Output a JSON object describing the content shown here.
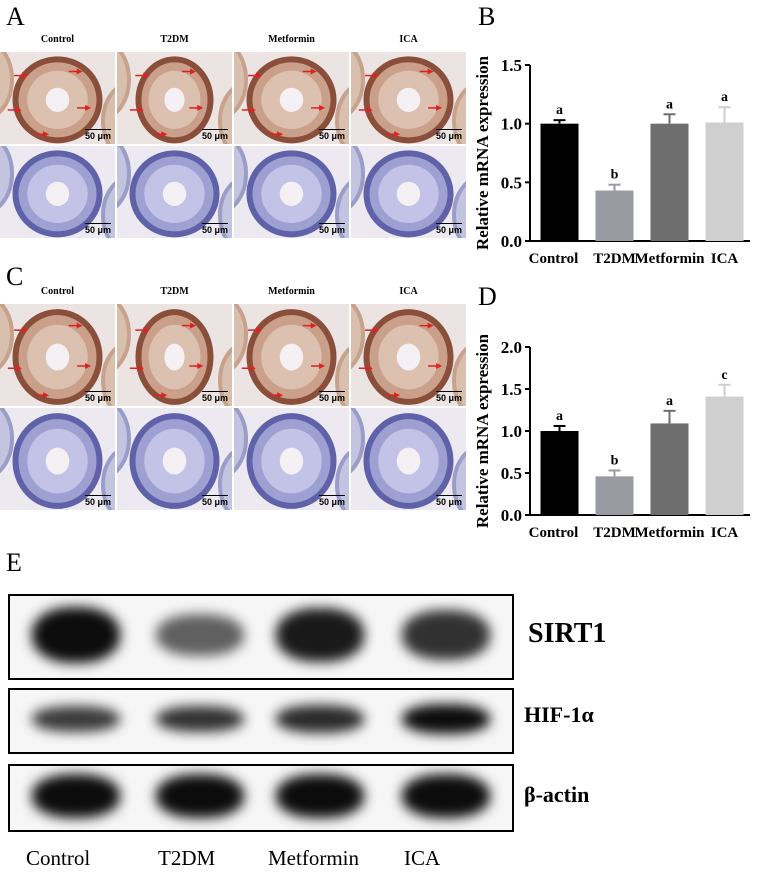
{
  "panels": {
    "A": "A",
    "B": "B",
    "C": "C",
    "D": "D",
    "E": "E"
  },
  "micro_headers": [
    "Control",
    "T2DM",
    "Metformin",
    "ICA"
  ],
  "scale_bar": "50 μm",
  "colors": {
    "stain_brown": "#b8866a",
    "stain_blue": "#7b7fbf",
    "tissue_bg": "#e9e3ea"
  },
  "chart_data": [
    {
      "type": "bar",
      "panel": "B",
      "categories": [
        "Control",
        "T2DM",
        "Metformin",
        "ICA"
      ],
      "values": [
        1.0,
        0.43,
        1.0,
        1.01
      ],
      "errors": [
        0.03,
        0.05,
        0.08,
        0.13
      ],
      "letters": [
        "a",
        "b",
        "a",
        "a"
      ],
      "colors": [
        "#000000",
        "#9a9aa2",
        "#6e6e6e",
        "#cfcfcf"
      ],
      "ylabel": "Relative mRNA expression",
      "ylim": [
        0,
        1.5
      ],
      "yticks": [
        "0.0",
        "0.5",
        "1.0",
        "1.5"
      ]
    },
    {
      "type": "bar",
      "panel": "D",
      "categories": [
        "Control",
        "T2DM",
        "Metformin",
        "ICA"
      ],
      "values": [
        1.0,
        0.46,
        1.09,
        1.41
      ],
      "errors": [
        0.06,
        0.07,
        0.15,
        0.14
      ],
      "letters": [
        "a",
        "b",
        "a",
        "c"
      ],
      "colors": [
        "#000000",
        "#9a9aa2",
        "#6e6e6e",
        "#cfcfcf"
      ],
      "ylabel": "Relative mRNA expression",
      "ylim": [
        0,
        2.0
      ],
      "yticks": [
        "0.0",
        "0.5",
        "1.0",
        "1.5",
        "2.0"
      ]
    }
  ],
  "western_blot": {
    "lanes": [
      "Control",
      "T2DM",
      "Metformin",
      "ICA"
    ],
    "proteins": [
      {
        "name": "SIRT1",
        "intensity": [
          1.0,
          0.45,
          0.9,
          0.75
        ]
      },
      {
        "name": "HIF-1α",
        "intensity": [
          0.7,
          0.75,
          0.8,
          1.0
        ]
      },
      {
        "name": "β-actin",
        "intensity": [
          1.0,
          1.0,
          1.0,
          1.0
        ]
      }
    ]
  }
}
